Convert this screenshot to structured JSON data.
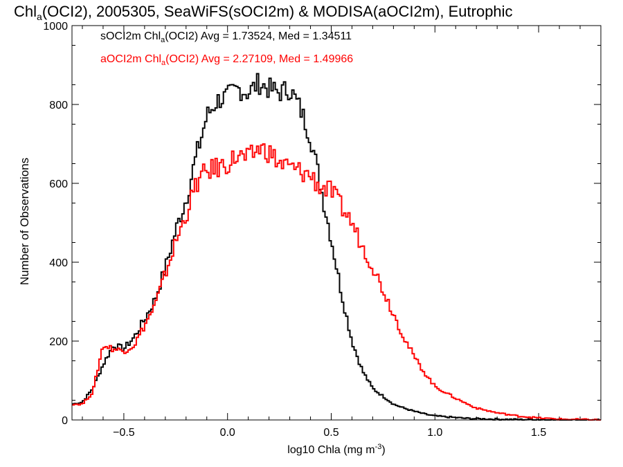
{
  "chart_data": {
    "type": "histogram-step",
    "title": {
      "main": "Chl",
      "sub": "a",
      "rest": "(OCI2), 2005305, SeaWiFS(sOCI2m) & MODISA(aOCI2m), Eutrophic"
    },
    "xlabel": {
      "main": "log10 Chla (mg m",
      "sup": "-3",
      "end": ")"
    },
    "ylabel": "Number of Observations",
    "xlim": [
      -0.75,
      1.8
    ],
    "ylim": [
      0,
      1000
    ],
    "x_ticks": [
      -0.5,
      0.0,
      0.5,
      1.0,
      1.5
    ],
    "x_tick_labels": [
      "−0.5",
      "0.0",
      "0.5",
      "1.0",
      "1.5"
    ],
    "y_ticks": [
      0,
      200,
      400,
      600,
      800,
      1000
    ],
    "y_tick_labels": [
      "0",
      "200",
      "400",
      "600",
      "800",
      "1000"
    ],
    "legend_placement": "top-left",
    "series": [
      {
        "name": "sOCI2m",
        "color": "#000000",
        "label": {
          "pre": "sOCI2m Chl",
          "sub": "a",
          "post": "(OCI2) Avg = 1.73524, Med = 1.34511"
        },
        "x": [
          -0.75,
          -0.7,
          -0.65,
          -0.6,
          -0.55,
          -0.5,
          -0.45,
          -0.4,
          -0.35,
          -0.3,
          -0.25,
          -0.2,
          -0.15,
          -0.1,
          -0.05,
          0.0,
          0.05,
          0.1,
          0.15,
          0.2,
          0.25,
          0.3,
          0.35,
          0.4,
          0.45,
          0.5,
          0.55,
          0.6,
          0.65,
          0.7,
          0.75,
          0.8,
          0.85,
          0.9,
          0.95,
          1.0,
          1.05,
          1.1,
          1.15,
          1.2,
          1.3,
          1.4,
          1.5,
          1.6,
          1.7,
          1.8
        ],
        "y": [
          40,
          45,
          80,
          140,
          190,
          180,
          210,
          255,
          305,
          385,
          480,
          560,
          670,
          770,
          810,
          820,
          840,
          830,
          855,
          840,
          830,
          840,
          790,
          720,
          590,
          460,
          320,
          200,
          125,
          80,
          60,
          40,
          30,
          22,
          15,
          10,
          8,
          6,
          4,
          3,
          2,
          1,
          1,
          0,
          0,
          0
        ]
      },
      {
        "name": "aOCI2m",
        "color": "#ff0000",
        "label": {
          "pre": "aOCI2m Chl",
          "sub": "a",
          "post": "(OCI2) Avg = 2.27109, Med = 1.49966"
        },
        "x": [
          -0.75,
          -0.7,
          -0.65,
          -0.6,
          -0.55,
          -0.5,
          -0.45,
          -0.4,
          -0.35,
          -0.3,
          -0.25,
          -0.2,
          -0.15,
          -0.1,
          -0.05,
          0.0,
          0.05,
          0.1,
          0.15,
          0.2,
          0.25,
          0.3,
          0.35,
          0.4,
          0.45,
          0.5,
          0.55,
          0.6,
          0.65,
          0.7,
          0.75,
          0.8,
          0.85,
          0.9,
          0.95,
          1.0,
          1.05,
          1.1,
          1.15,
          1.2,
          1.3,
          1.4,
          1.5,
          1.6,
          1.7,
          1.8
        ],
        "y": [
          40,
          40,
          70,
          190,
          180,
          175,
          190,
          240,
          290,
          370,
          450,
          520,
          600,
          630,
          640,
          650,
          670,
          660,
          690,
          680,
          650,
          640,
          630,
          620,
          590,
          580,
          540,
          500,
          440,
          390,
          330,
          270,
          210,
          160,
          120,
          85,
          70,
          55,
          42,
          30,
          18,
          10,
          5,
          2,
          1,
          0
        ]
      }
    ]
  }
}
